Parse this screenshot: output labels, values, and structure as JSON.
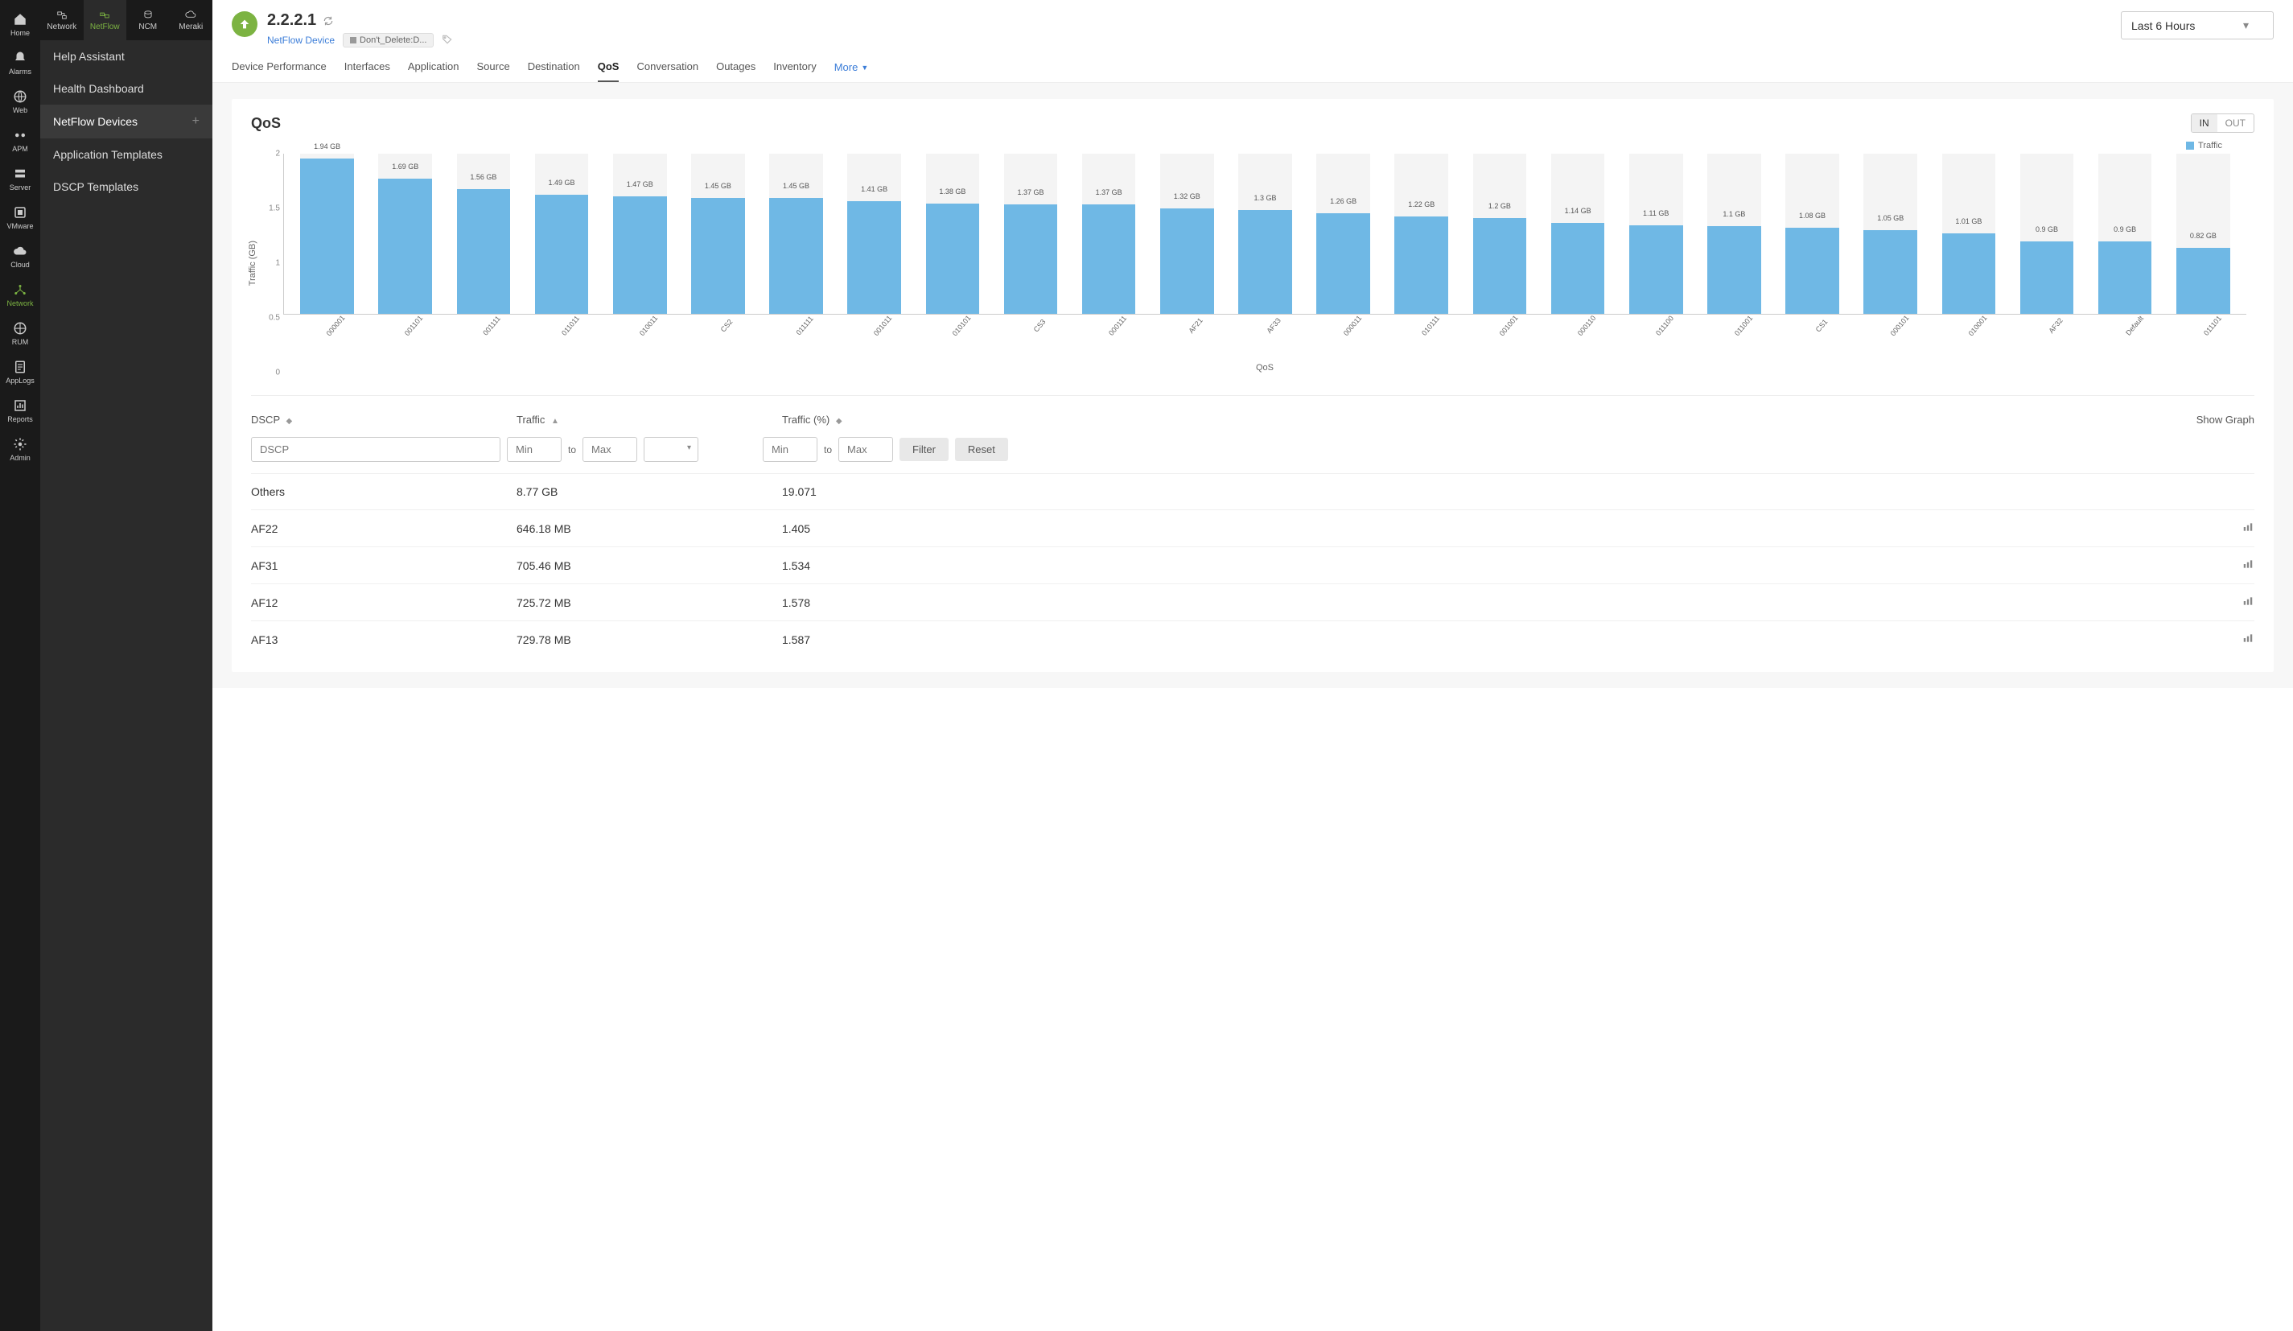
{
  "iconSidebar": [
    {
      "label": "Home"
    },
    {
      "label": "Alarms"
    },
    {
      "label": "Web"
    },
    {
      "label": "APM"
    },
    {
      "label": "Server"
    },
    {
      "label": "VMware"
    },
    {
      "label": "Cloud"
    },
    {
      "label": "Network",
      "active": true
    },
    {
      "label": "RUM"
    },
    {
      "label": "AppLogs"
    },
    {
      "label": "Reports"
    },
    {
      "label": "Admin"
    }
  ],
  "topTabs": [
    {
      "label": "Network"
    },
    {
      "label": "NetFlow",
      "active": true
    },
    {
      "label": "NCM"
    },
    {
      "label": "Meraki"
    }
  ],
  "menu": [
    {
      "label": "Help Assistant"
    },
    {
      "label": "Health Dashboard"
    },
    {
      "label": "NetFlow Devices",
      "selected": true,
      "plus": true
    },
    {
      "label": "Application Templates"
    },
    {
      "label": "DSCP Templates"
    }
  ],
  "header": {
    "title": "2.2.2.1",
    "deviceLink": "NetFlow Device",
    "tag": "Don't_Delete:D...",
    "timeRange": "Last 6 Hours"
  },
  "tabs": [
    "Device Performance",
    "Interfaces",
    "Application",
    "Source",
    "Destination",
    "QoS",
    "Conversation",
    "Outages",
    "Inventory"
  ],
  "activeTab": "QoS",
  "moreLabel": "More",
  "qos": {
    "title": "QoS",
    "inLabel": "IN",
    "outLabel": "OUT",
    "legend": "Traffic",
    "yLabel": "Traffic (GB)",
    "xLabel": "QoS",
    "yMax": 2.0,
    "yTicks": [
      0,
      0.5,
      1,
      1.5,
      2
    ],
    "bars": [
      {
        "x": "000001",
        "v": 1.94,
        "label": "1.94 GB"
      },
      {
        "x": "001101",
        "v": 1.69,
        "label": "1.69 GB"
      },
      {
        "x": "001111",
        "v": 1.56,
        "label": "1.56 GB"
      },
      {
        "x": "011011",
        "v": 1.49,
        "label": "1.49 GB"
      },
      {
        "x": "010011",
        "v": 1.47,
        "label": "1.47 GB"
      },
      {
        "x": "CS2",
        "v": 1.45,
        "label": "1.45 GB"
      },
      {
        "x": "011111",
        "v": 1.45,
        "label": "1.45 GB"
      },
      {
        "x": "001011",
        "v": 1.41,
        "label": "1.41 GB"
      },
      {
        "x": "010101",
        "v": 1.38,
        "label": "1.38 GB"
      },
      {
        "x": "CS3",
        "v": 1.37,
        "label": "1.37 GB"
      },
      {
        "x": "000111",
        "v": 1.37,
        "label": "1.37 GB"
      },
      {
        "x": "AF21",
        "v": 1.32,
        "label": "1.32 GB"
      },
      {
        "x": "AF33",
        "v": 1.3,
        "label": "1.3 GB"
      },
      {
        "x": "000011",
        "v": 1.26,
        "label": "1.26 GB"
      },
      {
        "x": "010111",
        "v": 1.22,
        "label": "1.22 GB"
      },
      {
        "x": "001001",
        "v": 1.2,
        "label": "1.2 GB"
      },
      {
        "x": "000110",
        "v": 1.14,
        "label": "1.14 GB"
      },
      {
        "x": "011100",
        "v": 1.11,
        "label": "1.11 GB"
      },
      {
        "x": "011001",
        "v": 1.1,
        "label": "1.1 GB"
      },
      {
        "x": "CS1",
        "v": 1.08,
        "label": "1.08 GB"
      },
      {
        "x": "000101",
        "v": 1.05,
        "label": "1.05 GB"
      },
      {
        "x": "010001",
        "v": 1.01,
        "label": "1.01 GB"
      },
      {
        "x": "AF32",
        "v": 0.9,
        "label": "0.9 GB"
      },
      {
        "x": "Default",
        "v": 0.9,
        "label": "0.9 GB"
      },
      {
        "x": "011101",
        "v": 0.82,
        "label": "0.82 GB"
      }
    ],
    "barColor": "#6fb8e5",
    "bgBarColor": "#f4f4f4"
  },
  "table": {
    "columns": {
      "dscp": "DSCP",
      "traffic": "Traffic",
      "pct": "Traffic (%)",
      "showGraph": "Show Graph"
    },
    "filters": {
      "dscpPlaceholder": "DSCP",
      "minPlaceholder": "Min",
      "maxPlaceholder": "Max",
      "to": "to",
      "filterBtn": "Filter",
      "resetBtn": "Reset"
    },
    "rows": [
      {
        "dscp": "Others",
        "traffic": "8.77 GB",
        "pct": "19.071",
        "graph": false
      },
      {
        "dscp": "AF22",
        "traffic": "646.18 MB",
        "pct": "1.405",
        "graph": true
      },
      {
        "dscp": "AF31",
        "traffic": "705.46 MB",
        "pct": "1.534",
        "graph": true
      },
      {
        "dscp": "AF12",
        "traffic": "725.72 MB",
        "pct": "1.578",
        "graph": true
      },
      {
        "dscp": "AF13",
        "traffic": "729.78 MB",
        "pct": "1.587",
        "graph": true
      }
    ]
  }
}
